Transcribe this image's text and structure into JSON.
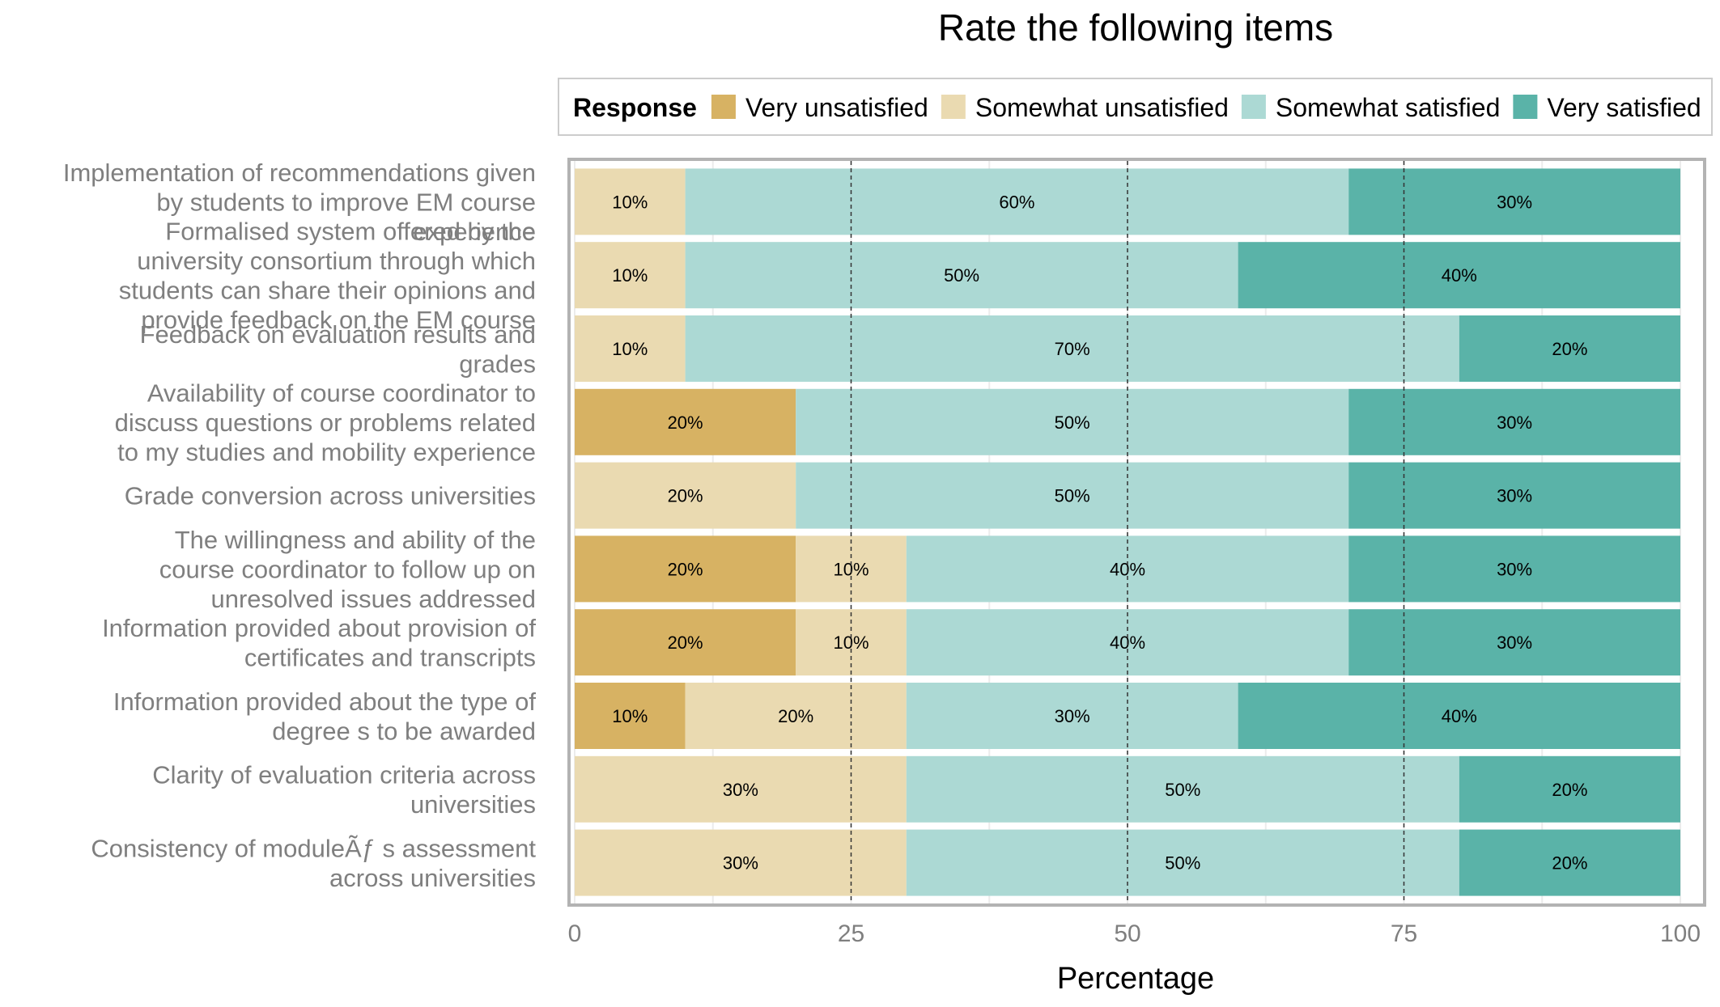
{
  "chart_data": {
    "type": "bar",
    "orientation": "horizontal",
    "stacked": true,
    "title": "Rate the following items",
    "xlabel": "Percentage",
    "ylabel": "",
    "xlim": [
      0,
      100
    ],
    "xticks": [
      0,
      25,
      50,
      75,
      100
    ],
    "grid": true,
    "legend": {
      "title": "Response",
      "position": "top"
    },
    "categories": [
      "Implementation of recommendations given by students to improve EM course experience",
      "Formalised system offered by the university consortium through which students can share their opinions and provide feedback on the EM course",
      "Feedback on evaluation results and grades",
      "Availability of course coordinator to discuss questions or problems related to my studies and mobility experience",
      "Grade conversion across universities",
      "The willingness and ability of the course coordinator to follow up on unresolved issues addressed",
      "Information provided about provision of certificates and transcripts",
      "Information provided about the type of degree s to be awarded",
      "Clarity of evaluation criteria across universities",
      "Consistency of moduleÃƒ s assessment across universities"
    ],
    "category_label_lines": [
      [
        "Implementation of recommendations given",
        "by students to improve EM course",
        "experience"
      ],
      [
        "Formalised system offered by the",
        "university consortium through which",
        "students can share their opinions and",
        "provide feedback on the EM course"
      ],
      [
        "Feedback on evaluation results and",
        "grades"
      ],
      [
        "Availability of course coordinator to",
        "discuss questions or problems related",
        "to my studies and mobility experience"
      ],
      [
        "Grade conversion across universities"
      ],
      [
        "The willingness and ability of the",
        "course coordinator to follow up on",
        "unresolved issues addressed"
      ],
      [
        "Information provided about provision of",
        "certificates and transcripts"
      ],
      [
        "Information provided about the type of",
        "degree s to be awarded"
      ],
      [
        "Clarity of evaluation criteria across",
        "universities"
      ],
      [
        "Consistency of moduleÃƒ s assessment",
        "across universities"
      ]
    ],
    "series": [
      {
        "name": "Very unsatisfied",
        "color": "#D7B263",
        "values": [
          0,
          0,
          0,
          20,
          0,
          20,
          20,
          10,
          0,
          0
        ]
      },
      {
        "name": "Somewhat unsatisfied",
        "color": "#EADAB1",
        "values": [
          10,
          10,
          10,
          0,
          20,
          10,
          10,
          20,
          30,
          30
        ]
      },
      {
        "name": "Somewhat satisfied",
        "color": "#ACD9D4",
        "values": [
          60,
          50,
          70,
          50,
          50,
          40,
          40,
          30,
          50,
          50
        ]
      },
      {
        "name": "Very satisfied",
        "color": "#5AB3A8",
        "values": [
          30,
          40,
          20,
          30,
          30,
          30,
          30,
          40,
          20,
          20
        ]
      }
    ],
    "value_label_suffix": "%"
  }
}
